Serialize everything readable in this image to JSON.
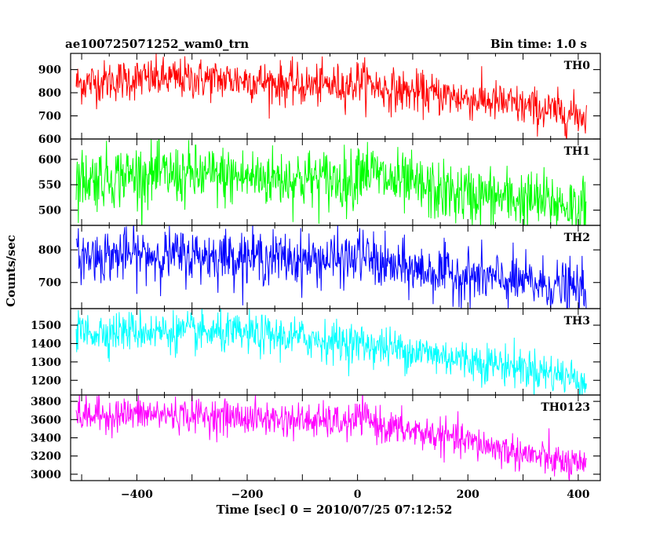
{
  "chart_data": {
    "type": "line",
    "title": "ae100725071252_wam0_trn",
    "bin_time_label": "Bin time: 1.0 s",
    "xlabel": "Time [sec] 0 = 2010/07/25 07:12:52",
    "ylabel": "Counts/sec",
    "xlim": [
      -520,
      440
    ],
    "x_ticks": [
      -400,
      -200,
      0,
      200,
      400
    ],
    "x_ticklabels": [
      "−400",
      "−200",
      "0",
      "200",
      "400"
    ],
    "x_range": [
      -510,
      415
    ],
    "grid": false,
    "legend": "none",
    "panels": [
      {
        "name": "TH0",
        "color": "#ff0000",
        "ylim": [
          600,
          970
        ],
        "yticks": [
          600,
          700,
          800,
          900
        ],
        "trend": [
          [
            -510,
            840
          ],
          [
            -400,
            860
          ],
          [
            -300,
            860
          ],
          [
            -200,
            855
          ],
          [
            -100,
            830
          ],
          [
            -5,
            835
          ],
          [
            0,
            860
          ],
          [
            50,
            815
          ],
          [
            150,
            790
          ],
          [
            250,
            760
          ],
          [
            350,
            720
          ],
          [
            415,
            700
          ]
        ],
        "noise": 45
      },
      {
        "name": "TH1",
        "color": "#00ff00",
        "ylim": [
          470,
          640
        ],
        "yticks": [
          500,
          550,
          600
        ],
        "trend": [
          [
            -510,
            560
          ],
          [
            -400,
            570
          ],
          [
            -200,
            565
          ],
          [
            -50,
            560
          ],
          [
            -5,
            555
          ],
          [
            0,
            590
          ],
          [
            50,
            560
          ],
          [
            150,
            535
          ],
          [
            250,
            525
          ],
          [
            350,
            515
          ],
          [
            415,
            505
          ]
        ],
        "noise": 30
      },
      {
        "name": "TH2",
        "color": "#0000ff",
        "ylim": [
          620,
          875
        ],
        "yticks": [
          700,
          800
        ],
        "trend": [
          [
            -510,
            780
          ],
          [
            -400,
            785
          ],
          [
            -200,
            780
          ],
          [
            -100,
            770
          ],
          [
            -5,
            770
          ],
          [
            0,
            790
          ],
          [
            50,
            750
          ],
          [
            150,
            730
          ],
          [
            250,
            710
          ],
          [
            350,
            690
          ],
          [
            415,
            675
          ]
        ],
        "noise": 40
      },
      {
        "name": "TH3",
        "color": "#00ffff",
        "ylim": [
          1120,
          1590
        ],
        "yticks": [
          1200,
          1300,
          1400,
          1500
        ],
        "trend": [
          [
            -510,
            1460
          ],
          [
            -400,
            1470
          ],
          [
            -300,
            1460
          ],
          [
            -200,
            1450
          ],
          [
            -100,
            1430
          ],
          [
            0,
            1400
          ],
          [
            100,
            1360
          ],
          [
            200,
            1310
          ],
          [
            300,
            1270
          ],
          [
            415,
            1200
          ]
        ],
        "noise": 55
      },
      {
        "name": "TH0123",
        "color": "#ff00ff",
        "ylim": [
          2930,
          3870
        ],
        "yticks": [
          3000,
          3200,
          3400,
          3600,
          3800
        ],
        "trend": [
          [
            -510,
            3640
          ],
          [
            -400,
            3660
          ],
          [
            -300,
            3650
          ],
          [
            -200,
            3620
          ],
          [
            -100,
            3590
          ],
          [
            -5,
            3560
          ],
          [
            0,
            3650
          ],
          [
            50,
            3520
          ],
          [
            150,
            3420
          ],
          [
            250,
            3290
          ],
          [
            350,
            3160
          ],
          [
            415,
            3060
          ]
        ],
        "noise": 95
      }
    ]
  }
}
